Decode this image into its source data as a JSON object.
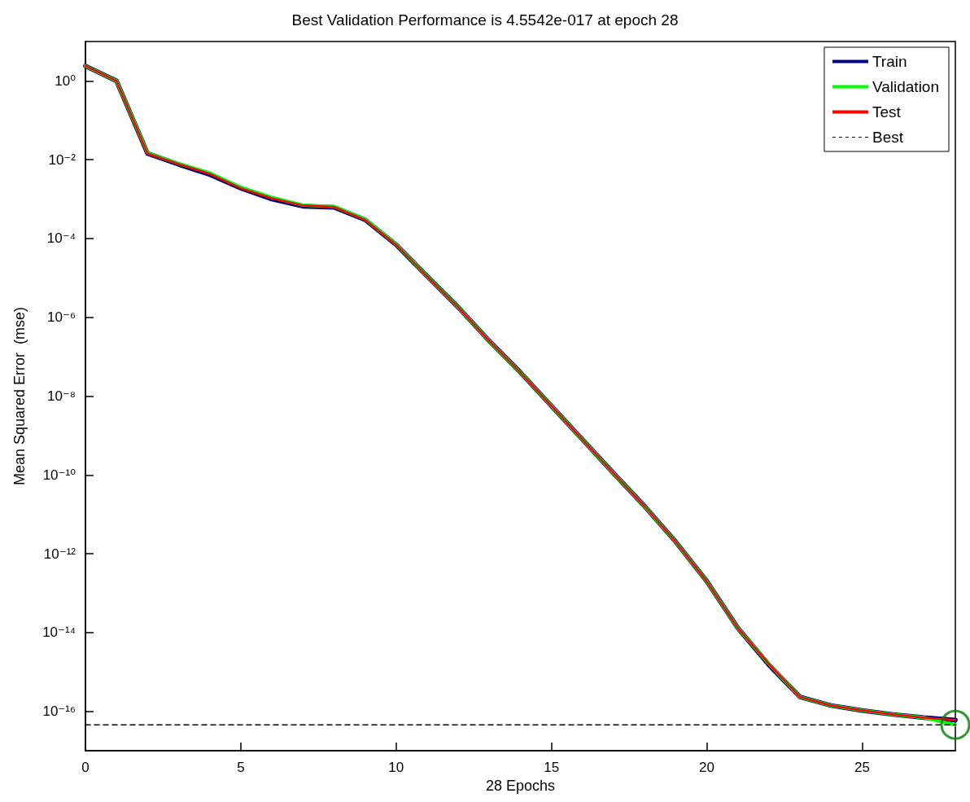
{
  "chart_data": {
    "type": "line",
    "title": "Best Validation Performance is 4.5542e-017 at epoch 28",
    "xlabel": "28 Epochs",
    "ylabel": "Mean Squared Error  (mse)",
    "log": "y",
    "grid": false,
    "legend": "top right",
    "marker": "none",
    "line_style": "solid",
    "x": [
      0,
      1,
      2,
      3,
      4,
      5,
      6,
      7,
      8,
      9,
      10,
      11,
      12,
      13,
      14,
      15,
      16,
      17,
      18,
      19,
      20,
      21,
      22,
      23,
      24,
      25,
      26,
      27,
      28
    ],
    "xlim": [
      0,
      28
    ],
    "xticks": [
      0,
      5,
      10,
      15,
      20,
      25
    ],
    "ylim": [
      1e-17,
      10
    ],
    "yticks": [
      {
        "value": 1,
        "label": "10⁰"
      },
      {
        "value": 0.01,
        "label": "10⁻²"
      },
      {
        "value": 0.0001,
        "label": "10⁻⁴"
      },
      {
        "value": 1e-06,
        "label": "10⁻⁶"
      },
      {
        "value": 1e-08,
        "label": "10⁻⁸"
      },
      {
        "value": 1e-10,
        "label": "10⁻¹⁰"
      },
      {
        "value": 1e-12,
        "label": "10⁻¹²"
      },
      {
        "value": 1e-14,
        "label": "10⁻¹⁴"
      },
      {
        "value": 1e-16,
        "label": "10⁻¹⁶"
      }
    ],
    "series": [
      {
        "name": "Train",
        "color": "#00007f",
        "values": [
          2.4,
          1,
          0.0144,
          0.0076,
          0.0042,
          0.0019,
          0.001,
          0.00066,
          0.00062,
          0.0003,
          7e-05,
          1.1e-05,
          1.8e-06,
          2.5e-07,
          4e-08,
          5.6e-09,
          7.9e-10,
          1.1e-10,
          1.6e-11,
          2e-12,
          2e-13,
          1.3e-14,
          1.5e-15,
          2.3e-16,
          1.4e-16,
          1.05e-16,
          8.3e-17,
          6.9e-17,
          6e-17
        ]
      },
      {
        "name": "Validation",
        "color": "#00ff00",
        "values": [
          2.4,
          1,
          0.0148,
          0.008,
          0.0046,
          0.002,
          0.0011,
          0.0007,
          0.00065,
          0.00031,
          7.2e-05,
          1.1e-05,
          1.8e-06,
          2.5e-07,
          4e-08,
          5.6e-09,
          7.9e-10,
          1.1e-10,
          1.6e-11,
          2e-12,
          2e-13,
          1.3e-14,
          1.6e-15,
          2.3e-16,
          1.4e-16,
          1.05e-16,
          8.3e-17,
          6.9e-17,
          4.5542e-17
        ]
      },
      {
        "name": "Test",
        "color": "#ff0000",
        "values": [
          2.4,
          1,
          0.0144,
          0.0078,
          0.0044,
          0.0019,
          0.00105,
          0.00069,
          0.00063,
          0.0003,
          7e-05,
          1.1e-05,
          1.8e-06,
          2.5e-07,
          4e-08,
          5.6e-09,
          7.9e-10,
          1.1e-10,
          1.6e-11,
          2e-12,
          2e-13,
          1.3e-14,
          1.6e-15,
          2.3e-16,
          1.4e-16,
          1.05e-16,
          8.3e-17,
          6.9e-17,
          6e-17
        ]
      },
      {
        "name": "Best",
        "color": "#000000",
        "line_style": "dashed",
        "values": [
          4.5542e-17,
          4.5542e-17,
          4.5542e-17,
          4.5542e-17,
          4.5542e-17,
          4.5542e-17,
          4.5542e-17,
          4.5542e-17,
          4.5542e-17,
          4.5542e-17,
          4.5542e-17,
          4.5542e-17,
          4.5542e-17,
          4.5542e-17,
          4.5542e-17,
          4.5542e-17,
          4.5542e-17,
          4.5542e-17,
          4.5542e-17,
          4.5542e-17,
          4.5542e-17,
          4.5542e-17,
          4.5542e-17,
          4.5542e-17,
          4.5542e-17,
          4.5542e-17,
          4.5542e-17,
          4.5542e-17,
          4.5542e-17
        ]
      },
      {
        "type": "scatter",
        "marker": "circle",
        "color": "#008000",
        "x": [
          28
        ],
        "values": [
          4.5542e-17
        ]
      }
    ]
  }
}
